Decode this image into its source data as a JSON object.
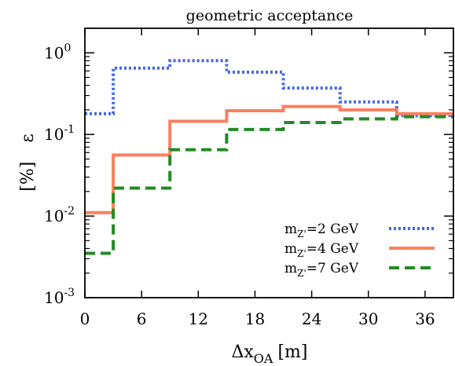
{
  "chart_data": {
    "type": "line",
    "step": true,
    "title": "geometric acceptance",
    "xlabel": "Δx",
    "xlabel_sub": "OA",
    "xlabel_unit": "[m]",
    "ylabel": "ε",
    "ylabel_unit": "[%]",
    "xlim": [
      0,
      39
    ],
    "ylim": [
      0.001,
      2
    ],
    "y_scale": "log",
    "x_ticks": [
      "0",
      "6",
      "12",
      "18",
      "24",
      "30",
      "36"
    ],
    "y_ticks": [
      {
        "base": "10",
        "exp": "0"
      },
      {
        "base": "10",
        "exp": "-1"
      },
      {
        "base": "10",
        "exp": "-2"
      },
      {
        "base": "10",
        "exp": "-3"
      }
    ],
    "grid": false,
    "legend_position": "bottom-right",
    "bin_edges": [
      0,
      3,
      9,
      15,
      21,
      27,
      33,
      39
    ],
    "series": [
      {
        "name": "mZ'=2 GeV",
        "name_main": "m",
        "name_sub": "Z'",
        "name_rest": "=2 GeV",
        "color": "#4169e1",
        "style": "dotted",
        "values": [
          0.18,
          0.65,
          0.8,
          0.58,
          0.37,
          0.25,
          0.17
        ]
      },
      {
        "name": "mZ'=4 GeV",
        "name_main": "m",
        "name_sub": "Z'",
        "name_rest": "=4 GeV",
        "color": "#fa8060",
        "style": "solid",
        "values": [
          0.011,
          0.056,
          0.145,
          0.195,
          0.22,
          0.2,
          0.18
        ]
      },
      {
        "name": "mZ'=7 GeV",
        "name_main": "m",
        "name_sub": "Z'",
        "name_rest": "=7 GeV",
        "color": "#228b22",
        "style": "dashed",
        "values": [
          0.0035,
          0.022,
          0.065,
          0.115,
          0.14,
          0.155,
          0.165
        ]
      }
    ]
  }
}
